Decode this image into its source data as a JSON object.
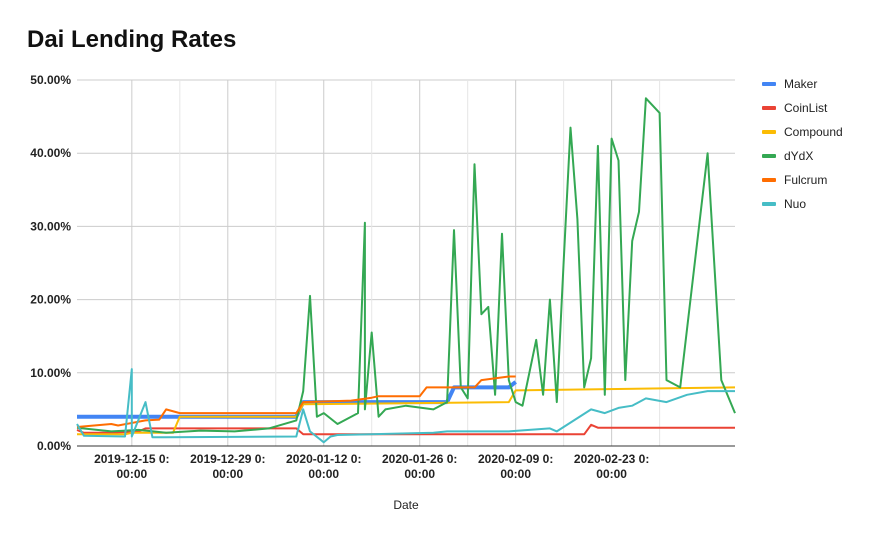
{
  "chart_data": {
    "type": "line",
    "title": "Dai Lending Rates",
    "xlabel": "Date",
    "ylabel": "",
    "ylim": [
      0,
      50
    ],
    "xlim": [
      "2019-12-07",
      "2020-03-12"
    ],
    "y_ticks": [
      "0.00%",
      "10.00%",
      "20.00%",
      "30.00%",
      "40.00%",
      "50.00%"
    ],
    "x_ticks": [
      {
        "date": "2019-12-15",
        "line1": "2019-12-15 0:",
        "line2": "00:00"
      },
      {
        "date": "2019-12-29",
        "line1": "2019-12-29 0:",
        "line2": "00:00"
      },
      {
        "date": "2020-01-12",
        "line1": "2020-01-12 0:",
        "line2": "00:00"
      },
      {
        "date": "2020-01-26",
        "line1": "2020-01-26 0:",
        "line2": "00:00"
      },
      {
        "date": "2020-02-09",
        "line1": "2020-02-09 0:",
        "line2": "00:00"
      },
      {
        "date": "2020-02-23",
        "line1": "2020-02-23 0:",
        "line2": "00:00"
      }
    ],
    "grid": true,
    "legend_position": "right",
    "series": [
      {
        "name": "Maker",
        "color": "#4285f4",
        "x": [
          "2019-12-07",
          "2019-12-21",
          "2020-01-08",
          "2020-01-09",
          "2020-01-30",
          "2020-01-31",
          "2020-02-08",
          "2020-02-09"
        ],
        "y": [
          4.0,
          4.0,
          4.0,
          6.0,
          6.0,
          8.0,
          8.0,
          8.75
        ]
      },
      {
        "name": "CoinList",
        "color": "#ea4335",
        "x": [
          "2019-12-07",
          "2019-12-08",
          "2019-12-12",
          "2019-12-16",
          "2019-12-17",
          "2020-01-08",
          "2020-01-09",
          "2020-02-19",
          "2020-02-20",
          "2020-02-21",
          "2020-03-12"
        ],
        "y": [
          2.2,
          1.8,
          1.8,
          2.0,
          2.4,
          2.4,
          1.6,
          1.6,
          2.9,
          2.5,
          2.5
        ]
      },
      {
        "name": "Compound",
        "color": "#fbbc04",
        "x": [
          "2019-12-07",
          "2019-12-14",
          "2019-12-15",
          "2019-12-21",
          "2019-12-22",
          "2020-01-08",
          "2020-01-09",
          "2020-02-08",
          "2020-02-09",
          "2020-03-12"
        ],
        "y": [
          1.6,
          1.6,
          1.8,
          1.8,
          4.0,
          4.0,
          5.7,
          6.0,
          7.6,
          8.0
        ]
      },
      {
        "name": "dYdX",
        "color": "#34a853",
        "x": [
          "2019-12-07",
          "2019-12-12",
          "2019-12-16",
          "2019-12-20",
          "2019-12-25",
          "2019-12-30",
          "2020-01-04",
          "2020-01-08",
          "2020-01-09",
          "2020-01-10",
          "2020-01-11",
          "2020-01-12",
          "2020-01-14",
          "2020-01-17",
          "2020-01-18",
          "2020-01-18",
          "2020-01-19",
          "2020-01-20",
          "2020-01-21",
          "2020-01-24",
          "2020-01-28",
          "2020-01-30",
          "2020-01-31",
          "2020-02-01",
          "2020-02-02",
          "2020-02-03",
          "2020-02-04",
          "2020-02-05",
          "2020-02-06",
          "2020-02-07",
          "2020-02-08",
          "2020-02-09",
          "2020-02-10",
          "2020-02-12",
          "2020-02-13",
          "2020-02-14",
          "2020-02-15",
          "2020-02-16",
          "2020-02-17",
          "2020-02-18",
          "2020-02-19",
          "2020-02-20",
          "2020-02-21",
          "2020-02-22",
          "2020-02-23",
          "2020-02-24",
          "2020-02-25",
          "2020-02-26",
          "2020-02-27",
          "2020-02-28",
          "2020-03-01",
          "2020-03-02",
          "2020-03-04",
          "2020-03-06",
          "2020-03-08",
          "2020-03-10",
          "2020-03-12"
        ],
        "y": [
          2.5,
          2.0,
          2.2,
          1.8,
          2.1,
          2.0,
          2.4,
          3.5,
          7.5,
          20.5,
          4.0,
          4.5,
          3.0,
          4.5,
          30.5,
          5.0,
          15.5,
          4.0,
          5.0,
          5.5,
          5.0,
          6.0,
          29.5,
          8.0,
          6.5,
          38.5,
          18.0,
          19.0,
          7.0,
          29.0,
          9.0,
          6.0,
          5.5,
          14.5,
          7.0,
          20.0,
          6.0,
          25.0,
          43.5,
          31.0,
          8.0,
          12.0,
          41.0,
          7.0,
          42.0,
          39.0,
          9.0,
          28.0,
          32.0,
          47.5,
          45.5,
          9.0,
          8.0,
          24.0,
          40.0,
          9.0,
          4.5
        ]
      },
      {
        "name": "Fulcrum",
        "color": "#ff6d01",
        "x": [
          "2019-12-07",
          "2019-12-12",
          "2019-12-13",
          "2019-12-17",
          "2019-12-19",
          "2019-12-20",
          "2019-12-22",
          "2020-01-08",
          "2020-01-09",
          "2020-01-16",
          "2020-01-19",
          "2020-01-20",
          "2020-01-26",
          "2020-01-27",
          "2020-02-03",
          "2020-02-04",
          "2020-02-08",
          "2020-02-09"
        ],
        "y": [
          2.6,
          3.0,
          2.8,
          3.5,
          3.6,
          5.0,
          4.5,
          4.5,
          6.0,
          6.2,
          6.6,
          6.8,
          6.8,
          8.0,
          8.0,
          9.0,
          9.5,
          9.5
        ]
      },
      {
        "name": "Nuo",
        "color": "#46bdc6",
        "x": [
          "2019-12-07",
          "2019-12-08",
          "2019-12-14",
          "2019-12-15",
          "2019-12-15",
          "2019-12-17",
          "2019-12-18",
          "2019-12-20",
          "2020-01-08",
          "2020-01-09",
          "2020-01-10",
          "2020-01-12",
          "2020-01-13",
          "2020-01-14",
          "2020-01-28",
          "2020-01-30",
          "2020-02-08",
          "2020-02-14",
          "2020-02-15",
          "2020-02-20",
          "2020-02-22",
          "2020-02-24",
          "2020-02-26",
          "2020-02-28",
          "2020-03-02",
          "2020-03-05",
          "2020-03-08",
          "2020-03-10",
          "2020-03-12"
        ],
        "y": [
          3.0,
          1.4,
          1.3,
          10.5,
          1.3,
          6.0,
          1.2,
          1.2,
          1.3,
          5.0,
          2.0,
          0.5,
          1.3,
          1.5,
          1.8,
          2.0,
          2.0,
          2.4,
          2.0,
          5.0,
          4.5,
          5.2,
          5.5,
          6.5,
          6.0,
          7.0,
          7.5,
          7.5,
          7.5
        ]
      }
    ]
  }
}
